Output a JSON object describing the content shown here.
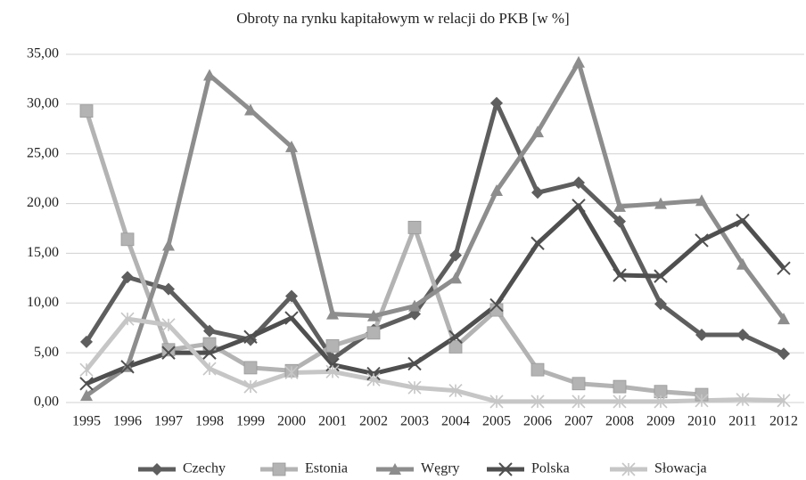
{
  "chart_data": {
    "type": "line",
    "title": "Obroty na rynku kapitałowym w relacji do PKB [w %]",
    "categories": [
      "1995",
      "1996",
      "1997",
      "1998",
      "1999",
      "2000",
      "2001",
      "2002",
      "2003",
      "2004",
      "2005",
      "2006",
      "2007",
      "2008",
      "2009",
      "2010",
      "2011",
      "2012"
    ],
    "series": [
      {
        "name": "Czechy",
        "color": "#5e5e5e",
        "marker": "diamond",
        "values": [
          6.1,
          12.6,
          11.4,
          7.2,
          6.3,
          10.7,
          4.4,
          7.3,
          8.9,
          14.8,
          30.1,
          21.1,
          22.1,
          18.2,
          9.9,
          6.8,
          6.8,
          4.9
        ]
      },
      {
        "name": "Estonia",
        "color": "#b3b3b3",
        "marker": "square",
        "values": [
          29.3,
          16.4,
          5.3,
          5.9,
          3.5,
          3.2,
          5.7,
          7.0,
          17.6,
          5.6,
          9.3,
          3.3,
          1.9,
          1.6,
          1.1,
          0.8,
          null,
          null
        ]
      },
      {
        "name": "Węgry",
        "color": "#8d8d8d",
        "marker": "triangle",
        "values": [
          0.7,
          3.6,
          15.8,
          32.9,
          29.4,
          25.7,
          8.9,
          8.7,
          9.7,
          12.5,
          21.3,
          27.2,
          34.2,
          19.7,
          20.0,
          20.3,
          13.9,
          8.4
        ]
      },
      {
        "name": "Polska",
        "color": "#4f4f4f",
        "marker": "x",
        "values": [
          1.9,
          3.6,
          5.0,
          5.0,
          6.6,
          8.5,
          3.8,
          2.9,
          3.9,
          6.6,
          9.8,
          16.0,
          19.8,
          12.8,
          12.7,
          16.3,
          18.3,
          13.5
        ]
      },
      {
        "name": "Słowacja",
        "color": "#c6c6c6",
        "marker": "star",
        "values": [
          3.3,
          8.4,
          7.8,
          3.4,
          1.6,
          3.0,
          3.1,
          2.3,
          1.5,
          1.2,
          0.1,
          0.1,
          0.1,
          0.1,
          0.1,
          0.2,
          0.3,
          0.2
        ]
      }
    ],
    "ylim": [
      0,
      35
    ],
    "yticks": [
      {
        "value": 0,
        "label": "0,00"
      },
      {
        "value": 5,
        "label": "5,00"
      },
      {
        "value": 10,
        "label": "10,00"
      },
      {
        "value": 15,
        "label": "15,00"
      },
      {
        "value": 20,
        "label": "20,00"
      },
      {
        "value": 25,
        "label": "25,00"
      },
      {
        "value": 30,
        "label": "30,00"
      },
      {
        "value": 35,
        "label": "35,00"
      }
    ],
    "grid": true,
    "legend": "bottom"
  }
}
